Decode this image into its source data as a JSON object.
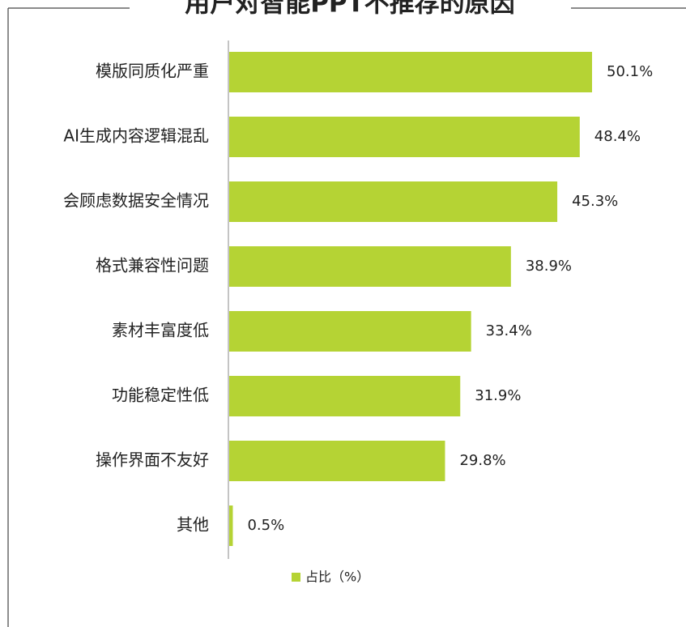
{
  "chart_data": {
    "type": "bar",
    "orientation": "horizontal",
    "title": "用户对智能PPT不推荐的原因",
    "categories": [
      "模版同质化严重",
      "AI生成内容逻辑混乱",
      "会顾虑数据安全情况",
      "格式兼容性问题",
      "素材丰富度低",
      "功能稳定性低",
      "操作界面不友好",
      "其他"
    ],
    "series": [
      {
        "name": "占比（%）",
        "color": "#b5d334",
        "values": [
          50.1,
          48.4,
          45.3,
          38.9,
          33.4,
          31.9,
          29.8,
          0.5
        ],
        "value_labels": [
          "50.1%",
          "48.4%",
          "45.3%",
          "38.9%",
          "33.4%",
          "31.9%",
          "29.8%",
          "0.5%"
        ]
      }
    ]
  }
}
